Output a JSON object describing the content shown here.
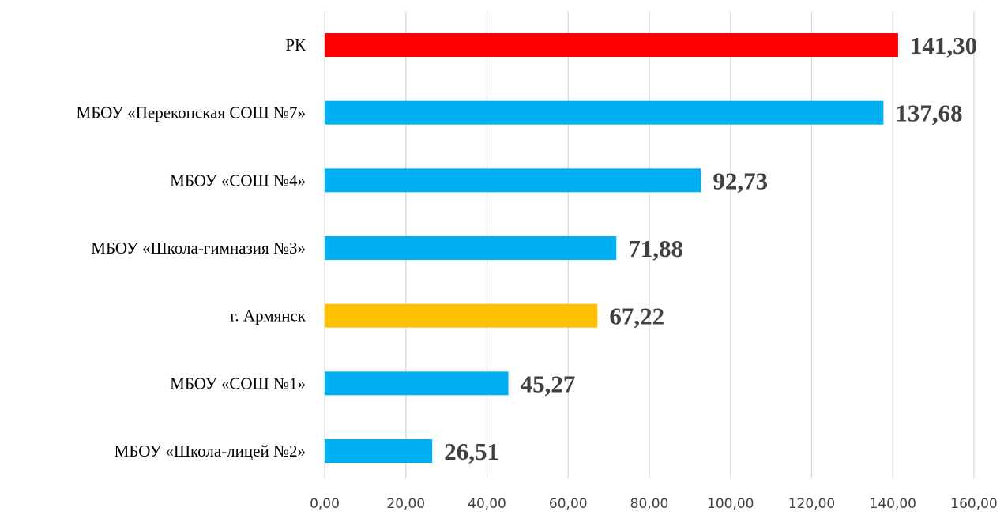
{
  "chart_data": {
    "type": "bar",
    "orientation": "horizontal",
    "categories": [
      "РК",
      "МБОУ «Перекопская СОШ №7»",
      "МБОУ «СОШ №4»",
      "МБОУ «Школа-гимназия №3»",
      "г. Армянск",
      "МБОУ «СОШ №1»",
      "МБОУ «Школа-лицей №2»"
    ],
    "values": [
      141.3,
      137.68,
      92.73,
      71.88,
      67.22,
      45.27,
      26.51
    ],
    "value_labels": [
      "141,30",
      "137,68",
      "92,73",
      "71,88",
      "67,22",
      "45,27",
      "26,51"
    ],
    "bar_colors": [
      "#ff0000",
      "#00b0f0",
      "#00b0f0",
      "#00b0f0",
      "#ffc000",
      "#00b0f0",
      "#00b0f0"
    ],
    "xlim": [
      0,
      160
    ],
    "x_ticks": [
      0,
      20,
      40,
      60,
      80,
      100,
      120,
      140,
      160
    ],
    "x_tick_labels": [
      "0,00",
      "20,00",
      "40,00",
      "60,00",
      "80,00",
      "100,00",
      "120,00",
      "140,00",
      "160,00"
    ],
    "grid": true,
    "legend": false,
    "colors": {
      "gridline": "#d9d9d9",
      "value_label": "#404040",
      "tick_label": "#404040",
      "category_label": "#000000"
    }
  }
}
